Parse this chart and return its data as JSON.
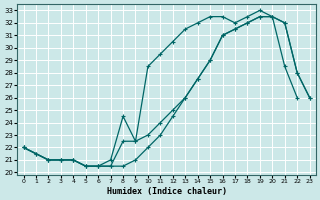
{
  "title": "",
  "xlabel": "Humidex (Indice chaleur)",
  "bg_color": "#cce8e8",
  "grid_color": "#ffffff",
  "line_color": "#006666",
  "xlim": [
    -0.5,
    23.5
  ],
  "ylim": [
    19.8,
    33.5
  ],
  "xticks": [
    0,
    1,
    2,
    3,
    4,
    5,
    6,
    7,
    8,
    9,
    10,
    11,
    12,
    13,
    14,
    15,
    16,
    17,
    18,
    19,
    20,
    21,
    22,
    23
  ],
  "yticks": [
    20,
    21,
    22,
    23,
    24,
    25,
    26,
    27,
    28,
    29,
    30,
    31,
    32,
    33
  ],
  "line1_x": [
    0,
    1,
    2,
    3,
    4,
    5,
    6,
    7,
    8,
    9,
    10,
    11,
    12,
    13,
    14,
    15,
    16,
    17,
    18,
    19,
    20,
    21,
    22,
    23
  ],
  "line1_y": [
    22.0,
    21.5,
    21.0,
    21.0,
    21.0,
    20.5,
    20.5,
    20.5,
    20.5,
    21.0,
    22.0,
    23.0,
    24.5,
    26.0,
    27.5,
    29.0,
    31.0,
    31.5,
    32.0,
    32.5,
    32.5,
    32.0,
    28.0,
    26.0
  ],
  "line2_x": [
    0,
    1,
    2,
    3,
    4,
    5,
    6,
    7,
    8,
    9,
    10,
    11,
    12,
    13,
    14,
    15,
    16,
    17,
    18,
    19,
    20,
    21,
    22,
    23
  ],
  "line2_y": [
    22.0,
    21.5,
    21.0,
    21.0,
    21.0,
    20.5,
    20.5,
    21.0,
    24.5,
    22.5,
    28.5,
    29.5,
    30.5,
    31.5,
    32.0,
    32.5,
    32.5,
    32.0,
    32.5,
    33.0,
    32.5,
    28.5,
    26.0,
    null
  ],
  "line3_x": [
    0,
    2,
    3,
    4,
    5,
    6,
    7,
    8,
    9,
    10,
    11,
    12,
    13,
    14,
    15,
    16,
    17,
    18,
    19,
    20,
    21,
    22,
    23
  ],
  "line3_y": [
    22.0,
    21.0,
    21.0,
    21.0,
    20.5,
    20.5,
    20.5,
    22.5,
    22.5,
    23.0,
    24.0,
    25.0,
    26.0,
    27.5,
    29.0,
    31.0,
    31.5,
    32.0,
    32.5,
    32.5,
    32.0,
    28.0,
    26.0
  ]
}
